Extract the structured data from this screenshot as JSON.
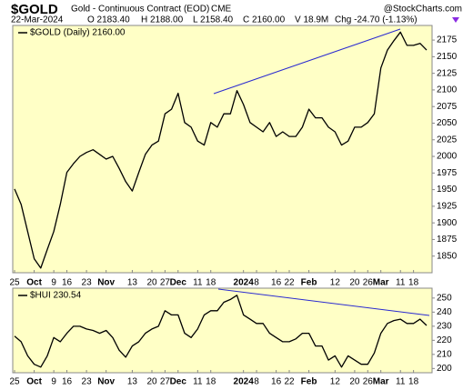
{
  "header": {
    "symbol": "$GOLD",
    "description": "Gold - Continuous Contract (EOD)",
    "exchange": "CME",
    "watermark": "@StockCharts.com",
    "date": "22-Mar-2024",
    "quote": [
      "O 2183.40",
      "H 2188.00",
      "L 2158.40",
      "C 2160.00",
      "V 18.9M"
    ],
    "change": "Chg -24.70 (-1.13%)"
  },
  "chart_data": [
    {
      "type": "line",
      "categories": [
        "25",
        null,
        null,
        "Oct",
        null,
        null,
        "9",
        null,
        "16",
        null,
        null,
        "23",
        null,
        null,
        "Nov",
        null,
        null,
        null,
        "13",
        null,
        null,
        "20",
        null,
        "27",
        null,
        "Dec",
        null,
        null,
        "11",
        null,
        "18",
        null,
        null,
        null,
        null,
        "2024",
        null,
        "8",
        null,
        null,
        "16",
        null,
        "22",
        null,
        null,
        "Feb",
        null,
        null,
        null,
        "12",
        null,
        null,
        "20",
        null,
        "26",
        null,
        "Mar",
        null,
        null,
        "11",
        null,
        "18",
        null,
        null
      ],
      "series": [
        {
          "name": "$GOLD (Daily) 2160.00",
          "color": "#000000",
          "values": [
            1951,
            1928,
            1887,
            1846,
            1832,
            1860,
            1887,
            1928,
            1976,
            1989,
            2000,
            2006,
            2010,
            2003,
            1996,
            2000,
            1982,
            1962,
            1948,
            1976,
            2003,
            2017,
            2023,
            2064,
            2071,
            2095,
            2051,
            2044,
            2023,
            2017,
            2051,
            2044,
            2064,
            2064,
            2099,
            2078,
            2051,
            2044,
            2037,
            2051,
            2030,
            2037,
            2030,
            2030,
            2044,
            2071,
            2058,
            2058,
            2044,
            2037,
            2017,
            2023,
            2044,
            2044,
            2051,
            2064,
            2133,
            2160,
            2174,
            2187,
            2167,
            2167,
            2170,
            2160
          ]
        }
      ],
      "ylim": [
        1825,
        2197
      ],
      "yticks": [
        1850,
        1875,
        1900,
        1925,
        1950,
        1975,
        2000,
        2025,
        2050,
        2075,
        2100,
        2125,
        2150,
        2175
      ],
      "grid": false
    },
    {
      "type": "line",
      "categories": [
        "25",
        null,
        null,
        "Oct",
        null,
        null,
        "9",
        null,
        "16",
        null,
        null,
        "23",
        null,
        null,
        "Nov",
        null,
        null,
        null,
        "13",
        null,
        null,
        "20",
        null,
        "27",
        null,
        "Dec",
        null,
        null,
        "11",
        null,
        "18",
        null,
        null,
        null,
        null,
        "2024",
        null,
        "8",
        null,
        null,
        "16",
        null,
        "22",
        null,
        null,
        "Feb",
        null,
        null,
        null,
        "12",
        null,
        null,
        "20",
        null,
        "26",
        null,
        "Mar",
        null,
        null,
        "11",
        null,
        "18",
        null,
        null
      ],
      "series": [
        {
          "name": "$HUI 230.54",
          "color": "#000000",
          "values": [
            223,
            219,
            209,
            203,
            201,
            209,
            222,
            219,
            225,
            230,
            230,
            228,
            227,
            225,
            227,
            222,
            213,
            208,
            216,
            219,
            225,
            228,
            230,
            241,
            238,
            238,
            225,
            222,
            228,
            238,
            241,
            241,
            247,
            249,
            252,
            238,
            235,
            232,
            232,
            225,
            222,
            219,
            219,
            221,
            225,
            225,
            216,
            216,
            206,
            209,
            201,
            209,
            206,
            203,
            203,
            211,
            225,
            232,
            234,
            235,
            232,
            232,
            235,
            230.54
          ]
        }
      ],
      "ylim": [
        197,
        257
      ],
      "yticks": [
        200,
        210,
        220,
        230,
        240,
        250
      ],
      "grid": false
    }
  ]
}
